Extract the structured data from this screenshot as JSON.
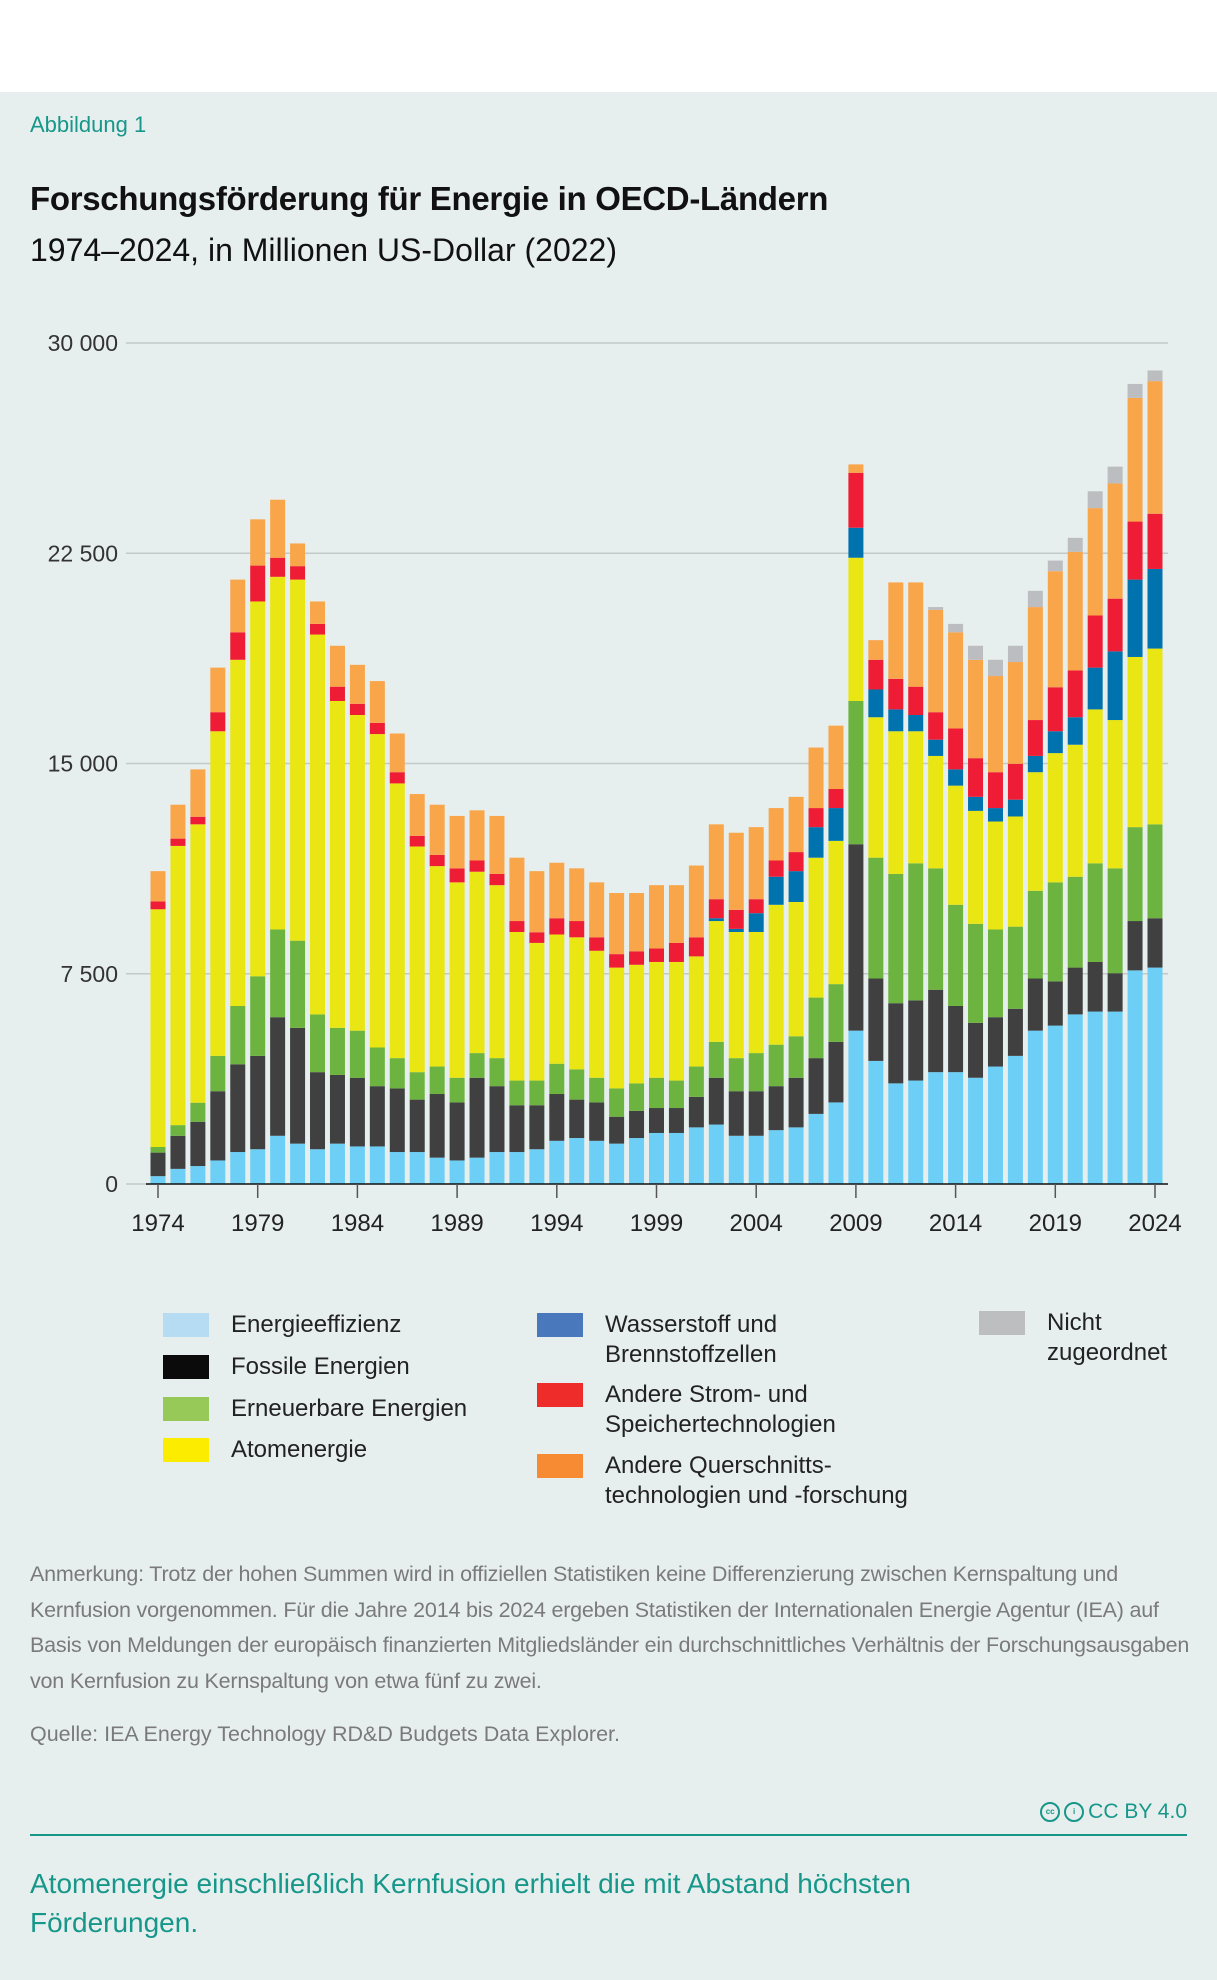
{
  "figure_label": "Abbildung 1",
  "title": "Forschungsförderung für Energie in OECD-Ländern",
  "subtitle": "1974–2024, in Millionen US-Dollar (2022)",
  "chart_data": {
    "type": "bar",
    "stacked": true,
    "title": "Forschungsförderung für Energie in OECD-Ländern",
    "subtitle": "1974–2024, in Millionen US-Dollar (2022)",
    "xlabel": "",
    "ylabel": "",
    "ylim": [
      0,
      30000
    ],
    "yticks": [
      0,
      7500,
      15000,
      22500,
      30000
    ],
    "ytick_labels": [
      "0",
      "7 500",
      "15 000",
      "22 500",
      "30 000"
    ],
    "xtick_labels": [
      "1974",
      "1979",
      "1984",
      "1989",
      "1994",
      "1999",
      "2004",
      "2009",
      "2014",
      "2019",
      "2024"
    ],
    "grid": true,
    "legend_position": "bottom",
    "categories": [
      1974,
      1975,
      1976,
      1977,
      1978,
      1979,
      1980,
      1981,
      1982,
      1983,
      1984,
      1985,
      1986,
      1987,
      1988,
      1989,
      1990,
      1991,
      1992,
      1993,
      1994,
      1995,
      1996,
      1997,
      1998,
      1999,
      2000,
      2001,
      2002,
      2003,
      2004,
      2005,
      2006,
      2007,
      2008,
      2009,
      2010,
      2011,
      2012,
      2013,
      2014,
      2015,
      2016,
      2017,
      2018,
      2019,
      2020,
      2021,
      2022,
      2023,
      2024
    ],
    "series": [
      {
        "name": "Energieeffizienz",
        "color": "#6dcff6",
        "legend_color": "#b5dcf2",
        "values": [
          280,
          540,
          640,
          840,
          1140,
          1240,
          1720,
          1440,
          1240,
          1440,
          1340,
          1340,
          1140,
          1140,
          940,
          840,
          940,
          1140,
          1140,
          1240,
          1540,
          1640,
          1540,
          1440,
          1640,
          1820,
          1820,
          2020,
          2120,
          1720,
          1720,
          1920,
          2020,
          2500,
          2910,
          5470,
          4390,
          3590,
          3690,
          3990,
          3990,
          3790,
          4190,
          4570,
          5470,
          5650,
          6050,
          6150,
          6150,
          7620,
          7720
        ]
      },
      {
        "name": "Fossile Energien",
        "color": "#404041",
        "legend_color": "#0b0b0b",
        "values": [
          840,
          1180,
          1580,
          2470,
          3130,
          3330,
          4230,
          4130,
          2750,
          2450,
          2450,
          2150,
          2270,
          1870,
          2270,
          2070,
          2850,
          2350,
          1670,
          1570,
          1670,
          1370,
          1370,
          960,
          970,
          890,
          890,
          1090,
          1670,
          1590,
          1590,
          1570,
          1770,
          1990,
          2160,
          6650,
          2940,
          2860,
          2860,
          2940,
          2360,
          1960,
          1760,
          1680,
          1860,
          1580,
          1670,
          1770,
          1370,
          1760,
          1760
        ]
      },
      {
        "name": "Erneuerbare Energien",
        "color": "#6db33f",
        "legend_color": "#96c957",
        "values": [
          200,
          380,
          680,
          1260,
          2080,
          2840,
          3130,
          3110,
          2060,
          1680,
          1680,
          1380,
          1080,
          980,
          980,
          880,
          880,
          1000,
          880,
          880,
          1080,
          1080,
          880,
          1010,
          980,
          1080,
          980,
          1080,
          1280,
          1180,
          1360,
          1480,
          1480,
          2160,
          2060,
          5110,
          4310,
          4610,
          4890,
          4330,
          3610,
          3530,
          3130,
          2930,
          3130,
          3530,
          3240,
          3520,
          3740,
          3350,
          3350
        ]
      },
      {
        "name": "Atomenergie",
        "color": "#e9e614",
        "legend_color": "#fbec00",
        "values": [
          8480,
          9960,
          9930,
          11580,
          12350,
          13370,
          12580,
          12880,
          13550,
          11660,
          11260,
          11180,
          9800,
          8050,
          7150,
          6970,
          6470,
          6170,
          5300,
          4910,
          4610,
          4710,
          4530,
          4310,
          4230,
          4130,
          4230,
          3930,
          4310,
          4500,
          4320,
          4990,
          4790,
          4990,
          5110,
          5110,
          5010,
          5090,
          4710,
          4010,
          4250,
          4030,
          3850,
          3930,
          4230,
          4610,
          4710,
          5490,
          5290,
          6070,
          6270
        ]
      },
      {
        "name": "Wasserstoff und Brennstoffzellen",
        "color": "#0072ae",
        "legend_color": "#4a78bd",
        "values": [
          0,
          0,
          0,
          0,
          0,
          0,
          0,
          0,
          0,
          0,
          0,
          0,
          0,
          0,
          0,
          0,
          0,
          0,
          0,
          0,
          0,
          0,
          0,
          0,
          0,
          0,
          0,
          0,
          100,
          110,
          670,
          1000,
          1100,
          1090,
          1170,
          1070,
          990,
          780,
          580,
          580,
          580,
          500,
          480,
          600,
          580,
          780,
          980,
          1490,
          2450,
          2760,
          2840
        ]
      },
      {
        "name": "Andere Strom- und Speichertechnologien",
        "color": "#ee1d35",
        "legend_color": "#ee2d2a",
        "values": [
          280,
          260,
          270,
          680,
          980,
          1280,
          680,
          480,
          380,
          510,
          400,
          400,
          400,
          380,
          400,
          500,
          400,
          400,
          390,
          380,
          580,
          580,
          480,
          480,
          480,
          480,
          680,
          680,
          680,
          680,
          500,
          580,
          680,
          680,
          680,
          1960,
          1060,
          1090,
          1010,
          980,
          1460,
          1380,
          1280,
          1280,
          1280,
          1570,
          1670,
          1860,
          1880,
          2070,
          1970
        ]
      },
      {
        "name": "Andere Querschnittstechnologien und -forschung",
        "color": "#f9a54a",
        "legend_color": "#f68b33",
        "values": [
          1080,
          1210,
          1690,
          1590,
          1880,
          1650,
          2070,
          810,
          800,
          1460,
          1390,
          1490,
          1380,
          1490,
          1790,
          1870,
          1790,
          2070,
          2260,
          2180,
          1980,
          1880,
          1960,
          2180,
          2080,
          2260,
          2060,
          2560,
          2670,
          2750,
          2570,
          1870,
          1970,
          2160,
          2260,
          300,
          700,
          3440,
          3720,
          3650,
          3430,
          3510,
          3430,
          3630,
          4030,
          4140,
          4230,
          3830,
          4110,
          4410,
          4730
        ]
      },
      {
        "name": "Nicht zugeordnet",
        "color": "#bcbdc0",
        "legend_color": "#bcbec0",
        "values": [
          0,
          0,
          0,
          0,
          0,
          0,
          0,
          0,
          0,
          0,
          0,
          0,
          0,
          0,
          0,
          0,
          0,
          0,
          0,
          0,
          0,
          0,
          0,
          0,
          0,
          0,
          0,
          0,
          0,
          0,
          0,
          0,
          0,
          0,
          0,
          0,
          0,
          0,
          0,
          100,
          300,
          500,
          580,
          580,
          580,
          380,
          500,
          600,
          600,
          500,
          380
        ]
      }
    ]
  },
  "legend": [
    {
      "label": "Energieeffizienz"
    },
    {
      "label": "Fossile Energien"
    },
    {
      "label": "Erneuerbare Energien"
    },
    {
      "label": "Atomenergie"
    },
    {
      "label": "Wasserstoff und\nBrennstoffzellen"
    },
    {
      "label": "Andere Strom- und\nSpeichertechnologien"
    },
    {
      "label": "Andere Querschnitts-\ntechnologien und -forschung"
    },
    {
      "label": "Nicht\nzugeordnet"
    }
  ],
  "note": "Anmerkung: Trotz der hohen Summen wird in offiziellen Statistiken keine Differenzierung zwischen Kernspaltung und Kernfusion vorgenommen. Für die Jahre 2014 bis 2024 ergeben Statistiken der Internationalen Energie Agentur (IEA) auf Basis von Meldungen der europäisch finanzierten Mitgliedsländer ein durchschnittliches Verhältnis der Forschungsausgaben von Kernfusion zu Kernspaltung von etwa fünf zu zwei.",
  "source": "Quelle: IEA Energy Technology RD&D Budgets Data Explorer.",
  "license": {
    "label": "CC BY 4.0",
    "icons": [
      "cc-icon",
      "by-icon"
    ]
  },
  "takeaway": "Atomenergie einschließlich Kernfusion erhielt die mit Abstand höchsten Förderungen.",
  "colors": {
    "accent": "#17978a",
    "background": "#e7efee"
  }
}
